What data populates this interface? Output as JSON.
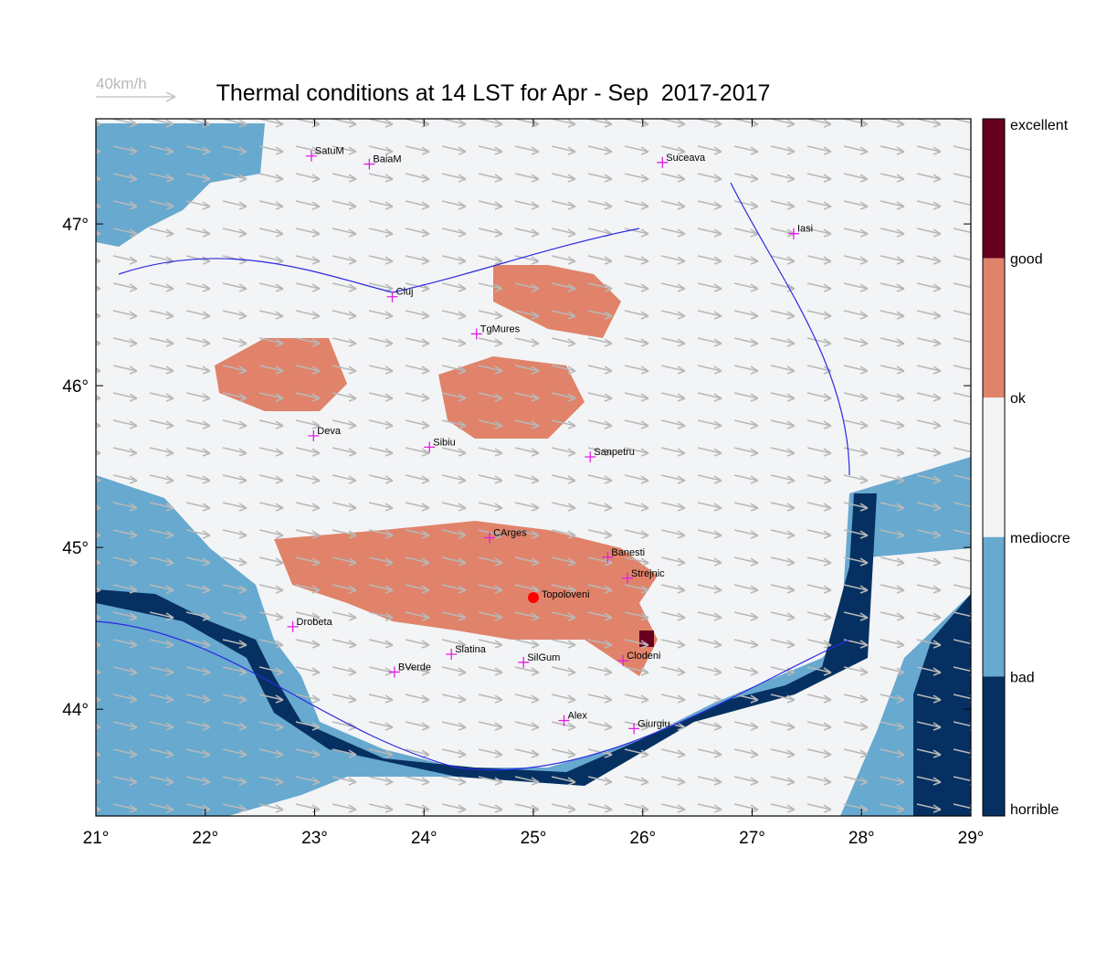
{
  "map": {
    "title": "Thermal conditions at 14 LST for Apr - Sep  2017-2017",
    "wind_scale": "40km/h",
    "xlim": [
      21,
      29
    ],
    "ylim": [
      43.34,
      47.65
    ],
    "xticks": [
      {
        "value": 21,
        "label": "21°"
      },
      {
        "value": 22,
        "label": "22°"
      },
      {
        "value": 23,
        "label": "23°"
      },
      {
        "value": 24,
        "label": "24°"
      },
      {
        "value": 25,
        "label": "25°"
      },
      {
        "value": 26,
        "label": "26°"
      },
      {
        "value": 27,
        "label": "27°"
      },
      {
        "value": 28,
        "label": "28°"
      },
      {
        "value": 29,
        "label": "29°"
      }
    ],
    "yticks": [
      {
        "value": 44,
        "label": "44°"
      },
      {
        "value": 45,
        "label": "45°"
      },
      {
        "value": 46,
        "label": "46°"
      },
      {
        "value": 47,
        "label": "47°"
      }
    ],
    "cities": [
      {
        "name": "SatuM",
        "lon": 22.97,
        "lat": 47.42
      },
      {
        "name": "BaiaM",
        "lon": 23.5,
        "lat": 47.37
      },
      {
        "name": "Suceava",
        "lon": 26.18,
        "lat": 47.38
      },
      {
        "name": "Iasi",
        "lon": 27.38,
        "lat": 46.94
      },
      {
        "name": "Cluj",
        "lon": 23.71,
        "lat": 46.55
      },
      {
        "name": "TgMures",
        "lon": 24.48,
        "lat": 46.32
      },
      {
        "name": "Deva",
        "lon": 22.99,
        "lat": 45.69
      },
      {
        "name": "Sibiu",
        "lon": 24.05,
        "lat": 45.62
      },
      {
        "name": "Sanpetru",
        "lon": 25.52,
        "lat": 45.56
      },
      {
        "name": "CArges",
        "lon": 24.6,
        "lat": 45.06
      },
      {
        "name": "Banesti",
        "lon": 25.68,
        "lat": 44.94
      },
      {
        "name": "Strejnic",
        "lon": 25.86,
        "lat": 44.81
      },
      {
        "name": "Drobeta",
        "lon": 22.8,
        "lat": 44.51
      },
      {
        "name": "Slatina",
        "lon": 24.25,
        "lat": 44.34
      },
      {
        "name": "SilGum",
        "lon": 24.91,
        "lat": 44.29
      },
      {
        "name": "BVerde",
        "lon": 23.73,
        "lat": 44.23
      },
      {
        "name": "Clodeni",
        "lon": 25.82,
        "lat": 44.3
      },
      {
        "name": "Alex",
        "lon": 25.28,
        "lat": 43.93
      },
      {
        "name": "Giurgiu",
        "lon": 25.92,
        "lat": 43.88
      }
    ],
    "station": {
      "name": "Topoloveni",
      "lon": 25.0,
      "lat": 44.69
    },
    "colorbar": {
      "labels": [
        "excellent",
        "good",
        "ok",
        "mediocre",
        "bad",
        "horrible"
      ],
      "colors": [
        "#67001f",
        "#e0836a",
        "#f3f4f6",
        "#67a9cf",
        "#053061"
      ]
    }
  }
}
